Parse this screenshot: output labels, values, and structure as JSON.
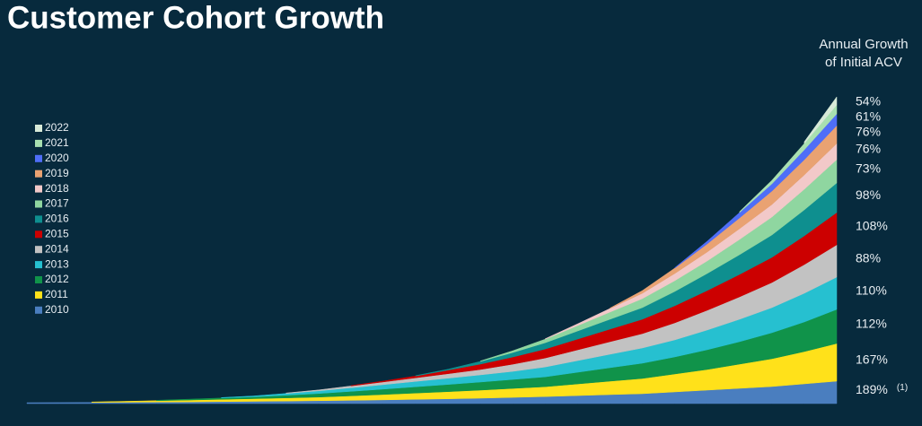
{
  "chart_data": {
    "type": "stacked_area",
    "title": "Customer Cohort Growth",
    "annotation_header": [
      "Annual Growth",
      "of Initial ACV"
    ],
    "categories": [
      null,
      null,
      null,
      null,
      null,
      null,
      null,
      null,
      null,
      null,
      null,
      null,
      null,
      null,
      null,
      null,
      null,
      null,
      null,
      null,
      null,
      null,
      null,
      null,
      null,
      null
    ],
    "ylim": [
      0,
      350
    ],
    "series": [
      {
        "name": "2010",
        "color": "#4a7ebf",
        "end_label": "189%",
        "end_note": "(1)",
        "values": [
          1,
          1.1,
          1.3,
          1.5,
          1.7,
          1.9,
          2.2,
          2.5,
          2.8,
          3.2,
          3.6,
          4.1,
          4.7,
          5.3,
          6,
          6.9,
          7.8,
          8.9,
          10,
          11,
          13,
          15,
          17,
          19,
          22,
          25
        ]
      },
      {
        "name": "2011",
        "color": "#ffe11a",
        "end_label": "167%",
        "values": [
          null,
          null,
          0.5,
          1,
          1.5,
          2,
          2.5,
          3,
          3.5,
          4,
          5,
          6,
          7,
          8,
          9,
          10,
          11,
          13,
          15,
          17,
          20,
          23,
          27,
          31,
          36,
          42
        ]
      },
      {
        "name": "2012",
        "color": "#10934a",
        "end_label": "112%",
        "values": [
          null,
          null,
          null,
          null,
          0.5,
          1,
          1.5,
          2,
          3,
          4,
          5,
          6,
          7,
          8,
          9,
          10,
          11,
          13,
          15,
          17,
          19,
          22,
          25,
          29,
          33,
          38
        ]
      },
      {
        "name": "2013",
        "color": "#26c0d0",
        "end_label": "110%",
        "values": [
          null,
          null,
          null,
          null,
          null,
          null,
          0.5,
          1,
          2,
          3,
          4,
          5,
          6,
          7,
          8,
          9,
          11,
          13,
          15,
          17,
          19,
          22,
          25,
          28,
          32,
          36
        ]
      },
      {
        "name": "2014",
        "color": "#c2c2c2",
        "end_label": "88%",
        "values": [
          null,
          null,
          null,
          null,
          null,
          null,
          null,
          null,
          0.5,
          1,
          2,
          3,
          4,
          5,
          6,
          8,
          10,
          12,
          14,
          16,
          19,
          22,
          25,
          28,
          32,
          36
        ]
      },
      {
        "name": "2015",
        "color": "#cc0000",
        "end_label": "108%",
        "values": [
          null,
          null,
          null,
          null,
          null,
          null,
          null,
          null,
          null,
          null,
          0.5,
          1,
          2,
          4,
          6,
          8,
          10,
          12,
          14,
          16,
          19,
          22,
          25,
          28,
          32,
          36
        ]
      },
      {
        "name": "2016",
        "color": "#0e8f8f",
        "end_label": "98%",
        "values": [
          null,
          null,
          null,
          null,
          null,
          null,
          null,
          null,
          null,
          null,
          null,
          null,
          0.5,
          1,
          3,
          5,
          7,
          9,
          11,
          13,
          16,
          19,
          22,
          25,
          29,
          33
        ]
      },
      {
        "name": "2017",
        "color": "#8fd6a0",
        "end_label": "73%",
        "values": [
          null,
          null,
          null,
          null,
          null,
          null,
          null,
          null,
          null,
          null,
          null,
          null,
          null,
          null,
          0.5,
          2,
          4,
          6,
          8,
          10,
          12,
          14,
          17,
          20,
          23,
          26
        ]
      },
      {
        "name": "2018",
        "color": "#f2c9c9",
        "end_label": "76%",
        "values": [
          null,
          null,
          null,
          null,
          null,
          null,
          null,
          null,
          null,
          null,
          null,
          null,
          null,
          null,
          null,
          null,
          0.5,
          2,
          4,
          6,
          8,
          10,
          12,
          14,
          16,
          18
        ]
      },
      {
        "name": "2019",
        "color": "#e9a272",
        "end_label": "76%",
        "values": [
          null,
          null,
          null,
          null,
          null,
          null,
          null,
          null,
          null,
          null,
          null,
          null,
          null,
          null,
          null,
          null,
          null,
          null,
          0.5,
          3,
          6,
          9,
          12,
          15,
          17,
          20
        ]
      },
      {
        "name": "2020",
        "color": "#4f6ef7",
        "end_label": "61%",
        "values": [
          null,
          null,
          null,
          null,
          null,
          null,
          null,
          null,
          null,
          null,
          null,
          null,
          null,
          null,
          null,
          null,
          null,
          null,
          null,
          null,
          0.5,
          3,
          6,
          8,
          11,
          13
        ]
      },
      {
        "name": "2021",
        "color": "#a8e0b0",
        "end_label": "54%",
        "values": [
          null,
          null,
          null,
          null,
          null,
          null,
          null,
          null,
          null,
          null,
          null,
          null,
          null,
          null,
          null,
          null,
          null,
          null,
          null,
          null,
          null,
          null,
          1,
          4,
          7,
          10
        ]
      },
      {
        "name": "2022",
        "color": "#d8ead8",
        "values": [
          null,
          null,
          null,
          null,
          null,
          null,
          null,
          null,
          null,
          null,
          null,
          null,
          null,
          null,
          null,
          null,
          null,
          null,
          null,
          null,
          null,
          null,
          null,
          null,
          2,
          9
        ]
      }
    ]
  }
}
